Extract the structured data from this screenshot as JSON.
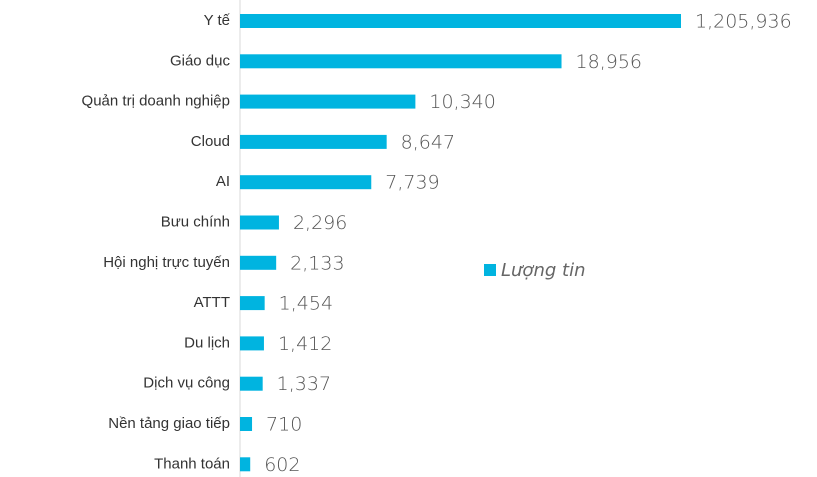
{
  "chart_data": {
    "type": "bar",
    "orientation": "horizontal",
    "categories": [
      "Y tế",
      "Giáo dục",
      "Quản trị doanh nghiệp",
      "Cloud",
      "AI",
      "Bưu chính",
      "Hội nghị trực tuyến",
      "ATTT",
      "Du lịch",
      "Dịch vụ công",
      "Nền tảng giao tiếp",
      "Thanh toán"
    ],
    "series": [
      {
        "name": "Lượng tin",
        "color": "#00b4e0",
        "values": [
          1205936,
          18956,
          10340,
          8647,
          7739,
          2296,
          2133,
          1454,
          1412,
          1337,
          710,
          602
        ],
        "value_labels": [
          "1,205,936",
          "18,956",
          "10,340",
          "8,647",
          "7,739",
          "2,296",
          "2,133",
          "1,454",
          "1,412",
          "1,337",
          "710",
          "602"
        ]
      }
    ],
    "xlim": [
      0,
      26000
    ],
    "legend": "right"
  }
}
